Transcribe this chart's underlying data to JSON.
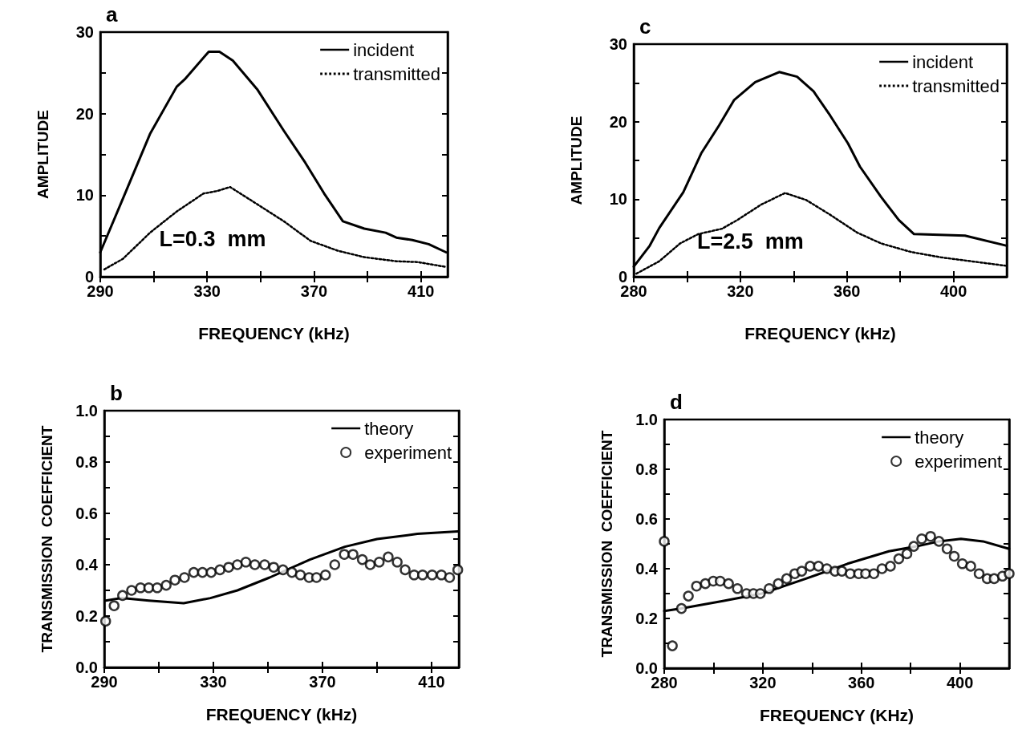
{
  "chart_data": [
    {
      "type": "line",
      "title": "a",
      "xlabel": "FREQUENCY (kHz)",
      "ylabel": "AMPLITUDE",
      "annotations": [
        "L=0.3  mm"
      ],
      "legend": "top right",
      "marker": "none",
      "xlim": [
        290,
        420
      ],
      "xticks": [
        290,
        {
          "value": 310,
          "label": null
        },
        330,
        {
          "value": 350,
          "label": null
        },
        370,
        {
          "value": 390,
          "label": null
        },
        410
      ],
      "ylim": [
        0,
        30
      ],
      "yticks": [
        0,
        {
          "value": 5,
          "label": null
        },
        10,
        {
          "value": 15,
          "label": null
        },
        20,
        {
          "value": 25,
          "label": null
        },
        30
      ],
      "series": [
        {
          "name": "incident",
          "color": "#000000",
          "line_style": "solid",
          "x": [
            290,
            298.5,
            308.6,
            318.6,
            321.6,
            330.6,
            334.6,
            339.6,
            348.7,
            358.7,
            366.7,
            373.8,
            380.8,
            388.8,
            396.8,
            400.8,
            406.8,
            412.9,
            419.4
          ],
          "values": [
            3.0,
            9.6,
            17.5,
            23.3,
            24.2,
            27.6,
            27.6,
            26.5,
            23.0,
            17.9,
            14.0,
            10.2,
            6.8,
            5.9,
            5.4,
            4.8,
            4.5,
            4.0,
            3.0
          ]
        },
        {
          "name": "transmitted",
          "color": "#000000",
          "line_style": "dotted",
          "x": [
            291.5,
            298.5,
            308.6,
            318.6,
            328.6,
            333.6,
            338.6,
            348.7,
            358.7,
            368.7,
            378.8,
            388.8,
            400.8,
            408.8,
            419.4
          ],
          "values": [
            0.9,
            2.2,
            5.4,
            8.0,
            10.2,
            10.5,
            11.0,
            8.9,
            6.8,
            4.4,
            3.2,
            2.4,
            1.9,
            1.8,
            1.2
          ]
        }
      ]
    },
    {
      "type": "line",
      "title": "c",
      "xlabel": "FREQUENCY (kHz)",
      "ylabel": "AMPLITUDE",
      "annotations": [
        "L=2.5  mm"
      ],
      "legend": "top right",
      "marker": "none",
      "xlim": [
        280,
        420
      ],
      "xticks": [
        280,
        {
          "value": 300,
          "label": null
        },
        320,
        {
          "value": 340,
          "label": null
        },
        360,
        {
          "value": 380,
          "label": null
        },
        400
      ],
      "ylim": [
        0,
        30
      ],
      "yticks": [
        0,
        {
          "value": 5,
          "label": null
        },
        10,
        {
          "value": 15,
          "label": null
        },
        20,
        {
          "value": 25,
          "label": null
        },
        30
      ],
      "series": [
        {
          "name": "incident",
          "color": "#000000",
          "line_style": "solid",
          "x": [
            280,
            286,
            289.6,
            298.6,
            305.3,
            312,
            317.7,
            325.6,
            334.6,
            341.3,
            347.5,
            353.7,
            360.4,
            364.9,
            372.8,
            379.5,
            385.2,
            404.3,
            420
          ],
          "values": [
            1.3,
            4.0,
            6.3,
            10.9,
            15.9,
            19.5,
            22.8,
            25.1,
            26.4,
            25.8,
            23.9,
            20.8,
            17.2,
            14.2,
            10.3,
            7.3,
            5.5,
            5.3,
            4.0
          ]
        },
        {
          "name": "transmitted",
          "color": "#000000",
          "line_style": "dotted",
          "x": [
            281,
            289.6,
            297.4,
            304.2,
            313.2,
            318.8,
            327.8,
            336.8,
            344.7,
            353.7,
            363.8,
            372.8,
            384,
            395.3,
            406.5,
            420
          ],
          "values": [
            0.4,
            2.0,
            4.3,
            5.5,
            6.2,
            7.3,
            9.3,
            10.8,
            9.9,
            8.0,
            5.7,
            4.3,
            3.2,
            2.5,
            2.0,
            1.4
          ]
        }
      ]
    },
    {
      "type": "line",
      "title": "b",
      "xlabel": "FREQUENCY (kHz)",
      "ylabel": "TRANSMISSION  COEFFICIENT",
      "legend": "top right",
      "xlim": [
        290,
        420
      ],
      "xticks": [
        290,
        {
          "value": 310,
          "label": null
        },
        330,
        {
          "value": 350,
          "label": null
        },
        370,
        {
          "value": 390,
          "label": null
        },
        410
      ],
      "ylim": [
        0,
        1
      ],
      "yticks": [
        {
          "value": 0,
          "label": "0.0"
        },
        {
          "value": 0.1,
          "label": null
        },
        0.2,
        {
          "value": 0.3,
          "label": null
        },
        0.4,
        {
          "value": 0.5,
          "label": null
        },
        0.6,
        {
          "value": 0.7,
          "label": null
        },
        0.8,
        {
          "value": 0.9,
          "label": null
        },
        {
          "value": 1,
          "label": "1.0"
        }
      ],
      "series": [
        {
          "name": "theory",
          "color": "#000000",
          "type": "line",
          "marker": "none",
          "line_style": "solid",
          "x": [
            290.5,
            296.4,
            306.3,
            319.1,
            328.9,
            338.8,
            350.6,
            365.4,
            378.2,
            390,
            404.8,
            419.6
          ],
          "values": [
            0.26,
            0.27,
            0.26,
            0.25,
            0.27,
            0.3,
            0.35,
            0.42,
            0.47,
            0.5,
            0.52,
            0.53
          ]
        },
        {
          "name": "experiment",
          "color": "#000000",
          "type": "scatter",
          "marker": "circle",
          "x": [
            290.5,
            293.6,
            296.7,
            300,
            303.3,
            306.3,
            309.4,
            312.7,
            315.9,
            319.4,
            322.8,
            326,
            329.2,
            332.4,
            335.6,
            338.8,
            341.9,
            345.2,
            348.8,
            352.1,
            355.5,
            358.8,
            361.9,
            365.1,
            367.8,
            371.1,
            374.5,
            378,
            381.2,
            384.6,
            387.5,
            390.8,
            394.1,
            397.4,
            400.3,
            403.6,
            406.7,
            410.2,
            413.6,
            416.6,
            419.6
          ],
          "values": [
            0.18,
            0.24,
            0.28,
            0.3,
            0.31,
            0.31,
            0.31,
            0.32,
            0.34,
            0.35,
            0.37,
            0.37,
            0.37,
            0.38,
            0.39,
            0.4,
            0.41,
            0.4,
            0.4,
            0.39,
            0.38,
            0.37,
            0.36,
            0.35,
            0.35,
            0.36,
            0.4,
            0.44,
            0.44,
            0.42,
            0.4,
            0.41,
            0.43,
            0.41,
            0.38,
            0.36,
            0.36,
            0.36,
            0.36,
            0.35,
            0.38
          ]
        }
      ]
    },
    {
      "type": "line",
      "title": "d",
      "xlabel": "FREQUENCY (KHz)",
      "ylabel": "TRANSMISSION  COEFFICIENT",
      "legend": "top right",
      "xlim": [
        280,
        420
      ],
      "xticks": [
        280,
        {
          "value": 300,
          "label": null
        },
        320,
        {
          "value": 340,
          "label": null
        },
        360,
        {
          "value": 380,
          "label": null
        },
        400
      ],
      "ylim": [
        0,
        1
      ],
      "yticks": [
        {
          "value": 0,
          "label": "0.0"
        },
        {
          "value": 0.1,
          "label": null
        },
        0.2,
        {
          "value": 0.3,
          "label": null
        },
        0.4,
        {
          "value": 0.5,
          "label": null
        },
        0.6,
        {
          "value": 0.7,
          "label": null
        },
        0.8,
        {
          "value": 0.9,
          "label": null
        },
        {
          "value": 1,
          "label": "1.0"
        }
      ],
      "series": [
        {
          "name": "theory",
          "color": "#000000",
          "type": "line",
          "marker": "none",
          "line_style": "solid",
          "x": [
            280,
            287,
            303.8,
            319.6,
            337.5,
            354.4,
            371.2,
            382.5,
            391.5,
            400.4,
            409.4,
            420
          ],
          "values": [
            0.23,
            0.24,
            0.27,
            0.3,
            0.36,
            0.42,
            0.47,
            0.49,
            0.51,
            0.52,
            0.51,
            0.48
          ]
        },
        {
          "name": "experiment",
          "color": "#000000",
          "type": "scatter",
          "marker": "circle",
          "x": [
            280,
            283.3,
            287,
            289.8,
            293.1,
            296.7,
            299.9,
            302.7,
            306.1,
            309.7,
            313.4,
            316.2,
            319,
            322.6,
            326.3,
            329.7,
            333,
            335.8,
            339.2,
            342.6,
            346,
            349.3,
            352.1,
            355.5,
            358.9,
            361.7,
            365.1,
            368.4,
            371.8,
            375.2,
            378.5,
            381.3,
            384.5,
            388.1,
            391.5,
            394.8,
            397.7,
            401,
            404.4,
            407.8,
            411.1,
            413.9,
            417.3,
            420
          ],
          "values": [
            0.51,
            0.09,
            0.24,
            0.29,
            0.33,
            0.34,
            0.35,
            0.35,
            0.34,
            0.32,
            0.3,
            0.3,
            0.3,
            0.32,
            0.34,
            0.36,
            0.38,
            0.39,
            0.41,
            0.41,
            0.4,
            0.39,
            0.39,
            0.38,
            0.38,
            0.38,
            0.38,
            0.4,
            0.41,
            0.44,
            0.46,
            0.49,
            0.52,
            0.53,
            0.51,
            0.48,
            0.45,
            0.42,
            0.41,
            0.38,
            0.36,
            0.36,
            0.37,
            0.38
          ]
        }
      ]
    }
  ]
}
